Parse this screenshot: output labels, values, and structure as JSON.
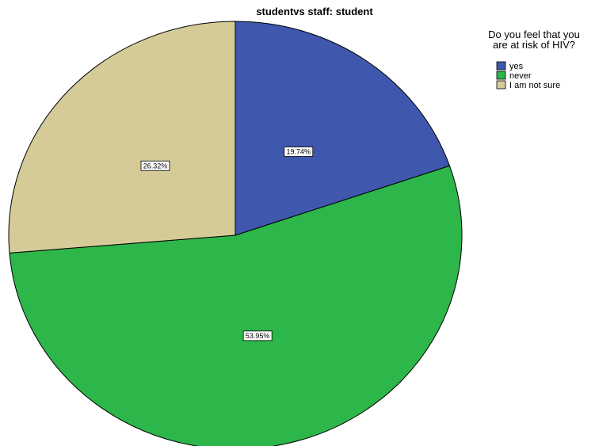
{
  "chart_data": {
    "type": "pie",
    "title": "studentvs staff: student",
    "legend": {
      "title_lines": [
        "Do you feel that you",
        "are at risk of HIV?"
      ],
      "placement": "right"
    },
    "slices": [
      {
        "label": "yes",
        "value": 19.74,
        "value_label": "19.74%",
        "color": "#3f57ad"
      },
      {
        "label": "never",
        "value": 53.95,
        "value_label": "53.95%",
        "color": "#2db649"
      },
      {
        "label": "I am not sure",
        "value": 26.32,
        "value_label": "26.32%",
        "color": "#d4cb98"
      }
    ],
    "start": "top",
    "direction": "clockwise"
  }
}
